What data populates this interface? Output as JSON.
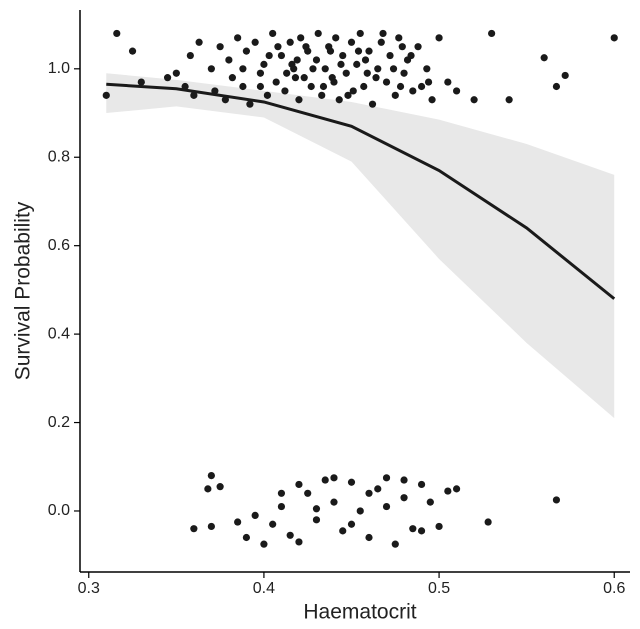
{
  "chart_data": {
    "type": "scatter",
    "xlabel": "Haematocrit",
    "ylabel": "Survival Probability",
    "xlim": [
      0.295,
      0.609
    ],
    "ylim": [
      -0.138,
      1.133
    ],
    "xticks": [
      0.3,
      0.4,
      0.5,
      0.6
    ],
    "yticks": [
      {
        "value": 0,
        "label": "0.0"
      },
      0.2,
      0.4,
      0.6,
      0.8,
      {
        "value": 1,
        "label": "1.0"
      }
    ],
    "point_color": "#1a1a1a",
    "line_color": "#1a1a1a",
    "band_color": "#e8e8e8",
    "points": {
      "x": [
        0.31,
        0.316,
        0.325,
        0.33,
        0.345,
        0.35,
        0.355,
        0.358,
        0.36,
        0.363,
        0.5,
        0.53,
        0.54,
        0.56,
        0.567,
        0.572,
        0.6,
        0.52,
        0.51,
        0.505,
        0.37,
        0.372,
        0.375,
        0.378,
        0.38,
        0.382,
        0.385,
        0.388,
        0.39,
        0.392,
        0.395,
        0.398,
        0.4,
        0.402,
        0.405,
        0.407,
        0.41,
        0.412,
        0.415,
        0.417,
        0.42,
        0.421,
        0.423,
        0.425,
        0.427,
        0.43,
        0.431,
        0.433,
        0.435,
        0.437,
        0.44,
        0.441,
        0.443,
        0.445,
        0.447,
        0.45,
        0.451,
        0.453,
        0.455,
        0.457,
        0.46,
        0.462,
        0.465,
        0.467,
        0.47,
        0.472,
        0.475,
        0.477,
        0.48,
        0.482,
        0.485,
        0.488,
        0.49,
        0.493,
        0.496,
        0.408,
        0.418,
        0.428,
        0.438,
        0.448,
        0.458,
        0.468,
        0.478,
        0.398,
        0.388,
        0.413,
        0.424,
        0.434,
        0.444,
        0.454,
        0.464,
        0.474,
        0.484,
        0.494,
        0.403,
        0.419,
        0.439,
        0.459,
        0.479,
        0.416,
        0.37,
        0.368,
        0.375,
        0.36,
        0.37,
        0.385,
        0.395,
        0.4,
        0.405,
        0.41,
        0.415,
        0.42,
        0.425,
        0.43,
        0.435,
        0.44,
        0.445,
        0.45,
        0.455,
        0.46,
        0.465,
        0.47,
        0.475,
        0.48,
        0.485,
        0.49,
        0.495,
        0.5,
        0.505,
        0.51,
        0.528,
        0.567,
        0.42,
        0.44,
        0.46,
        0.48,
        0.39,
        0.41,
        0.43,
        0.45,
        0.47,
        0.49
      ],
      "y": [
        0.94,
        1.08,
        1.04,
        0.97,
        0.98,
        0.99,
        0.96,
        1.03,
        0.94,
        1.06,
        1.07,
        1.08,
        0.93,
        1.025,
        0.96,
        0.985,
        1.07,
        0.93,
        0.95,
        0.97,
        1.0,
        0.95,
        1.05,
        0.93,
        1.02,
        0.98,
        1.07,
        0.96,
        1.04,
        0.92,
        1.06,
        0.99,
        1.01,
        0.94,
        1.08,
        0.97,
        1.03,
        0.95,
        1.06,
        1.0,
        0.93,
        1.07,
        0.98,
        1.04,
        0.96,
        1.02,
        1.08,
        0.94,
        1.0,
        1.05,
        0.97,
        1.07,
        0.93,
        1.03,
        0.99,
        1.06,
        0.95,
        1.01,
        1.08,
        0.96,
        1.04,
        0.92,
        1.0,
        1.06,
        0.97,
        1.03,
        0.94,
        1.07,
        0.99,
        1.02,
        0.95,
        1.05,
        0.96,
        1.0,
        0.93,
        1.05,
        0.98,
        1.0,
        1.04,
        0.94,
        1.02,
        1.08,
        0.96,
        0.96,
        1.0,
        0.99,
        1.05,
        0.96,
        1.01,
        1.04,
        0.98,
        1.0,
        1.03,
        0.97,
        1.03,
        1.02,
        0.98,
        0.99,
        1.05,
        1.01,
        0.08,
        0.05,
        0.055,
        -0.04,
        -0.035,
        -0.025,
        -0.01,
        -0.075,
        -0.03,
        0.01,
        -0.055,
        0.06,
        0.04,
        -0.02,
        0.07,
        0.02,
        -0.045,
        0.065,
        0.0,
        -0.06,
        0.05,
        0.075,
        -0.075,
        0.03,
        -0.04,
        0.06,
        0.02,
        -0.035,
        0.045,
        0.05,
        -0.025,
        0.025,
        -0.07,
        0.075,
        0.04,
        0.07,
        -0.06,
        0.04,
        0.005,
        -0.03,
        0.01,
        -0.045
      ]
    },
    "fit": {
      "x": [
        0.31,
        0.35,
        0.4,
        0.45,
        0.5,
        0.55,
        0.6
      ],
      "values": [
        0.965,
        0.955,
        0.925,
        0.87,
        0.77,
        0.64,
        0.48
      ],
      "lower": [
        0.9,
        0.915,
        0.89,
        0.79,
        0.57,
        0.38,
        0.21
      ],
      "upper": [
        0.99,
        0.975,
        0.95,
        0.925,
        0.885,
        0.83,
        0.76
      ]
    }
  }
}
